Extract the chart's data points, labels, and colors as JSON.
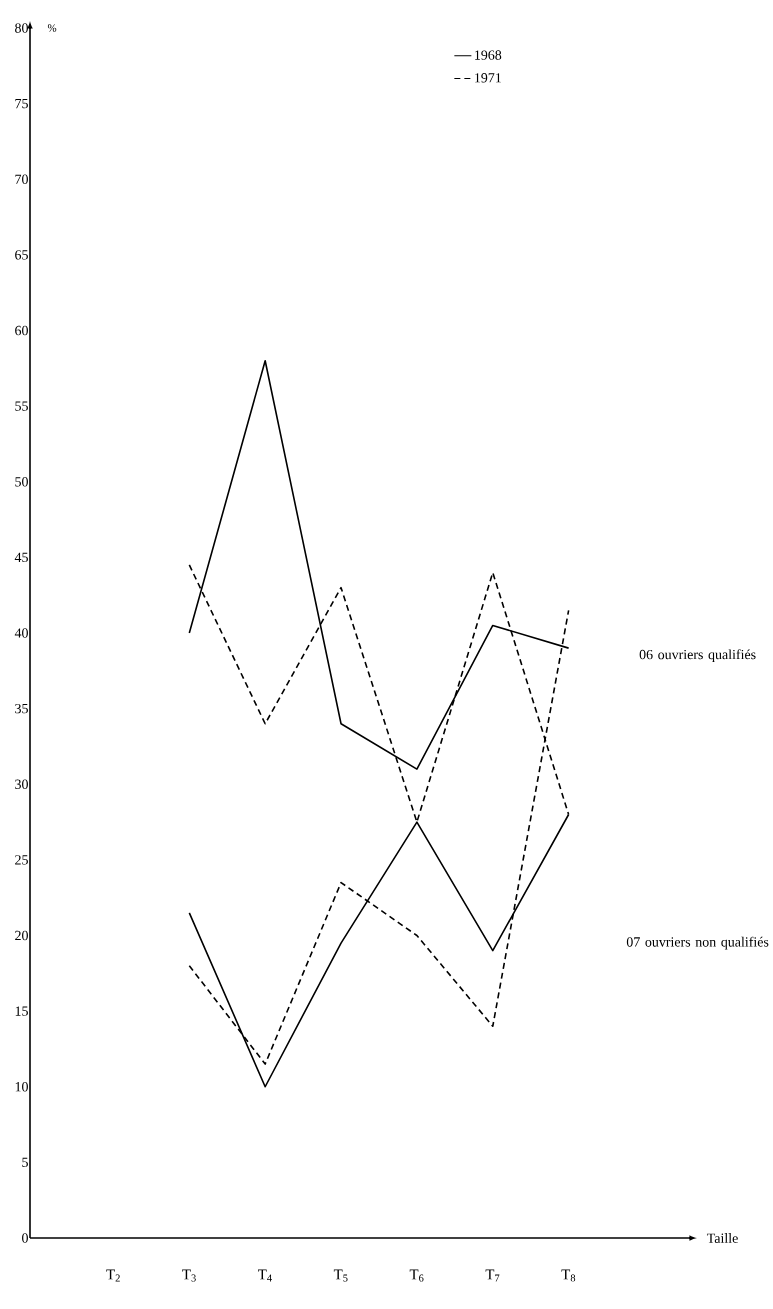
{
  "chart_data": {
    "type": "line",
    "ylabel": "%",
    "categories": [
      "T$_{2}$",
      "T$_{3}$",
      "T$_{4}$",
      "T$_{5}$",
      "T$_{6}$",
      "T$_{7}$",
      "T$_{8}$"
    ],
    "series": [
      {
        "name": "1968",
        "color": "#000000",
        "line_style": "solid",
        "values": [
          null,
          40,
          58,
          34,
          31,
          40.5,
          39
        ]
      },
      {
        "name": "1971",
        "color": "#000000",
        "line_style": "dashed",
        "values": [
          null,
          44.5,
          34,
          43,
          27.5,
          44,
          28
        ]
      },
      {
        "color": "#000000",
        "line_style": "solid",
        "values": [
          null,
          21.5,
          10,
          19.5,
          27.5,
          19,
          28
        ]
      },
      {
        "color": "#000000",
        "line_style": "dashed",
        "values": [
          null,
          18,
          11.5,
          23.5,
          20,
          14,
          41.5
        ]
      }
    ],
    "ylim": [
      0,
      80
    ],
    "yticks": [
      0,
      5,
      10,
      15,
      20,
      25,
      30,
      35,
      40,
      45,
      50,
      55,
      60,
      65,
      70,
      75,
      80
    ],
    "marker": "none",
    "legend": "top",
    "annotations": [
      "06 ouvriers qualifiés",
      "07 ouvriers non qualifiés",
      "Taille"
    ]
  }
}
